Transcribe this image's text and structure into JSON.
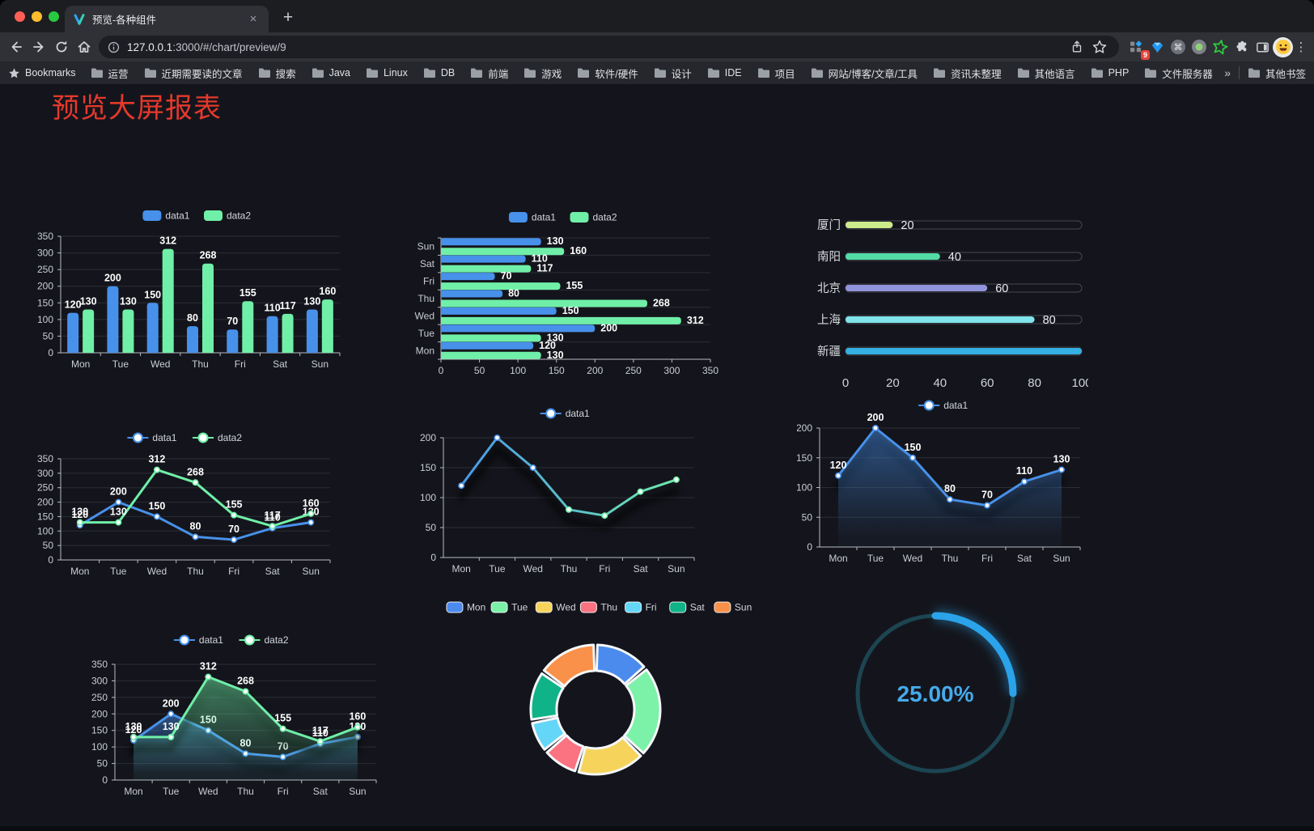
{
  "browser": {
    "tab_title": "预览-各种组件",
    "close_tab": "×",
    "new_tab": "+",
    "url_host": "127.0.0.1",
    "url_rest": ":3000/#/chart/preview/9",
    "extension_badge": "9",
    "menu_dots": "⋮",
    "bookmarks_label": "Bookmarks",
    "bookmark_folders": [
      "运营",
      "近期需要读的文章",
      "搜索",
      "Java",
      "Linux",
      "DB",
      "前端",
      "游戏",
      "软件/硬件",
      "设计",
      "IDE",
      "项目",
      "网站/博客/文章/工具",
      "资讯未整理",
      "其他语言",
      "PHP",
      "文件服务器"
    ],
    "bookmarks_overflow": "»",
    "other_bookmarks": "其他书签"
  },
  "page": {
    "title": "预览大屏报表"
  },
  "chart_data": [
    {
      "id": "grouped-bar",
      "type": "bar",
      "orientation": "vertical",
      "categories": [
        "Mon",
        "Tue",
        "Wed",
        "Thu",
        "Fri",
        "Sat",
        "Sun"
      ],
      "series": [
        {
          "name": "data1",
          "color": "#4791ea",
          "values": [
            120,
            200,
            150,
            80,
            70,
            110,
            130
          ]
        },
        {
          "name": "data2",
          "color": "#70efa8",
          "values": [
            130,
            130,
            312,
            268,
            155,
            117,
            160
          ]
        }
      ],
      "ylim": [
        0,
        350
      ],
      "ytick_step": 50,
      "legend_position": "top",
      "grid": true,
      "value_labels": true
    },
    {
      "id": "horizontal-bar",
      "type": "bar",
      "orientation": "horizontal",
      "categories": [
        "Mon",
        "Tue",
        "Wed",
        "Thu",
        "Fri",
        "Sat",
        "Sun"
      ],
      "category_order": "bottom-to-top",
      "series": [
        {
          "name": "data1",
          "color": "#4791ea",
          "values": [
            120,
            200,
            150,
            80,
            70,
            110,
            130
          ]
        },
        {
          "name": "data2",
          "color": "#70efa8",
          "values": [
            130,
            130,
            312,
            268,
            155,
            117,
            160
          ]
        }
      ],
      "xlim": [
        0,
        350
      ],
      "xtick_step": 50,
      "legend_position": "top",
      "value_labels": true
    },
    {
      "id": "city-progress",
      "type": "progress",
      "max": 100,
      "items": [
        {
          "label": "厦门",
          "value": 20,
          "color": "#cdeb8b"
        },
        {
          "label": "南阳",
          "value": 40,
          "color": "#52dba5"
        },
        {
          "label": "北京",
          "value": 60,
          "color": "#9094dc"
        },
        {
          "label": "上海",
          "value": 80,
          "color": "#80e4ea"
        },
        {
          "label": "新疆",
          "value": 100,
          "color": "#34b0e3"
        }
      ],
      "xticks": [
        0,
        20,
        40,
        60,
        80,
        100
      ]
    },
    {
      "id": "line-two-series",
      "type": "line",
      "categories": [
        "Mon",
        "Tue",
        "Wed",
        "Thu",
        "Fri",
        "Sat",
        "Sun"
      ],
      "series": [
        {
          "name": "data1",
          "color": "#4791ea",
          "values": [
            120,
            200,
            150,
            80,
            70,
            110,
            130
          ]
        },
        {
          "name": "data2",
          "color": "#70efa8",
          "values": [
            130,
            130,
            312,
            268,
            155,
            117,
            160
          ]
        }
      ],
      "ylim": [
        0,
        350
      ],
      "ytick_step": 50,
      "legend_position": "top",
      "value_labels": true,
      "shadow": false
    },
    {
      "id": "line-gradient",
      "type": "line",
      "categories": [
        "Mon",
        "Tue",
        "Wed",
        "Thu",
        "Fri",
        "Sat",
        "Sun"
      ],
      "series": [
        {
          "name": "data1",
          "color": [
            "#4791ea",
            "#70efa8"
          ],
          "values": [
            120,
            200,
            150,
            80,
            70,
            110,
            130
          ]
        }
      ],
      "ylim": [
        0,
        200
      ],
      "ytick_step": 50,
      "legend_position": "top",
      "value_labels": false,
      "shadow": true
    },
    {
      "id": "area-single",
      "type": "area",
      "categories": [
        "Mon",
        "Tue",
        "Wed",
        "Thu",
        "Fri",
        "Sat",
        "Sun"
      ],
      "series": [
        {
          "name": "data1",
          "color": "#4791ea",
          "values": [
            120,
            200,
            150,
            80,
            70,
            110,
            130
          ]
        }
      ],
      "ylim": [
        0,
        200
      ],
      "ytick_step": 50,
      "legend_position": "top",
      "value_labels": true,
      "shadow": true
    },
    {
      "id": "area-two-series",
      "type": "area",
      "categories": [
        "Mon",
        "Tue",
        "Wed",
        "Thu",
        "Fri",
        "Sat",
        "Sun"
      ],
      "series": [
        {
          "name": "data1",
          "color": "#4791ea",
          "values": [
            120,
            200,
            150,
            80,
            70,
            110,
            130
          ]
        },
        {
          "name": "data2",
          "color": "#70efa8",
          "values": [
            130,
            130,
            312,
            268,
            155,
            117,
            160
          ]
        }
      ],
      "ylim": [
        0,
        350
      ],
      "ytick_step": 50,
      "legend_position": "top",
      "value_labels": true,
      "shadow": true
    },
    {
      "id": "donut",
      "type": "pie",
      "donut": true,
      "categories": [
        "Mon",
        "Tue",
        "Wed",
        "Thu",
        "Fri",
        "Sat",
        "Sun"
      ],
      "values": [
        120,
        200,
        150,
        80,
        70,
        110,
        130
      ],
      "colors": [
        "#4b8bee",
        "#7cf1a8",
        "#f6d45c",
        "#fb7281",
        "#64d6f8",
        "#10b287",
        "#f9914a"
      ],
      "border_color": "#f5f7f9",
      "legend_position": "top"
    },
    {
      "id": "gauge",
      "type": "gauge",
      "label": "25.00%",
      "value": 25,
      "max": 100,
      "color": "#2aa3ea",
      "track_color": "#1c4552",
      "text_color": "#45aaec"
    }
  ]
}
